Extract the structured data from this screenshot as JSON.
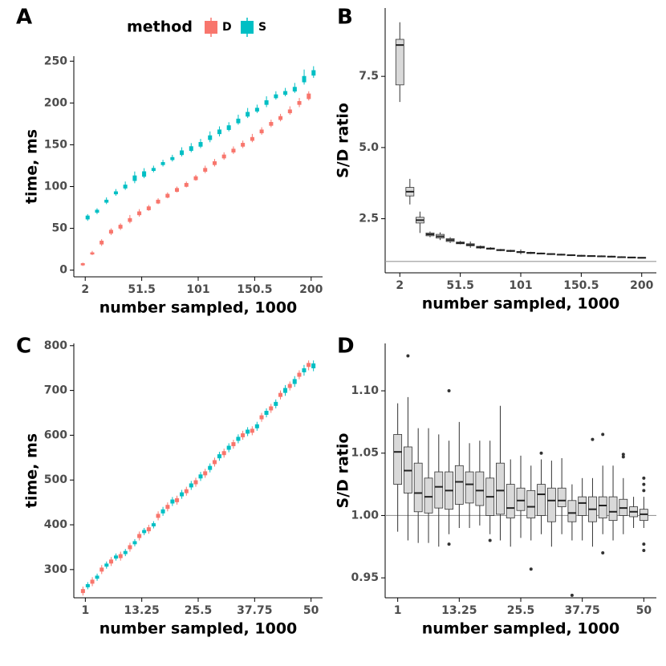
{
  "chart_data": [
    {
      "type": "box",
      "panel_label": "A",
      "xlabel": "number sampled, 1000",
      "ylabel": "time, ms",
      "legend_title": "method",
      "xlim": [
        -8,
        210
      ],
      "ylim": [
        -8,
        256
      ],
      "xticks": [
        2,
        51.5,
        101,
        150.5,
        200
      ],
      "yticks": [
        0,
        50,
        100,
        150,
        200,
        250
      ],
      "x": [
        2,
        10.25,
        18.5,
        26.75,
        35,
        43.25,
        51.5,
        59.75,
        68,
        76.25,
        84.5,
        92.75,
        101,
        109.25,
        117.5,
        125.75,
        134,
        142.25,
        150.5,
        158.75,
        167,
        175.25,
        183.5,
        191.75,
        200
      ],
      "series": [
        {
          "name": "D",
          "color": "#f8766d",
          "low": [
            5,
            18,
            29,
            42,
            48,
            56,
            64,
            71,
            79,
            86,
            93,
            99,
            107,
            116,
            124,
            132,
            139,
            146,
            153,
            162,
            171,
            178,
            186,
            195,
            203
          ],
          "q1": [
            6,
            19,
            31,
            44,
            50,
            58,
            66,
            72,
            80,
            87,
            94,
            100,
            108,
            118,
            126,
            134,
            141,
            148,
            155,
            164,
            173,
            180,
            188,
            198,
            205
          ],
          "median": [
            7,
            20,
            33,
            46,
            52,
            60,
            68,
            74,
            82,
            89,
            96,
            102,
            110,
            120,
            128,
            136,
            143,
            150,
            157,
            166,
            175,
            182,
            190,
            200,
            208
          ],
          "q3": [
            8,
            21,
            35,
            48,
            54,
            62,
            70,
            76,
            84,
            91,
            98,
            104,
            112,
            122,
            130,
            138,
            145,
            152,
            159,
            168,
            177,
            184,
            192,
            202,
            211
          ],
          "high": [
            9,
            23,
            37,
            50,
            56,
            66,
            73,
            78,
            86,
            93,
            100,
            106,
            114,
            125,
            133,
            141,
            148,
            155,
            163,
            171,
            180,
            187,
            196,
            206,
            214
          ]
        },
        {
          "name": "S",
          "color": "#00bfc4",
          "low": [
            59,
            67,
            79,
            89,
            96,
            104,
            110,
            117,
            124,
            130,
            136,
            141,
            146,
            153,
            160,
            166,
            174,
            182,
            188,
            195,
            204,
            208,
            212,
            222,
            230
          ],
          "q1": [
            61,
            69,
            81,
            91,
            98,
            107,
            112,
            119,
            126,
            132,
            138,
            143,
            148,
            156,
            163,
            168,
            176,
            184,
            190,
            198,
            206,
            210,
            214,
            225,
            233
          ],
          "median": [
            63,
            70,
            82,
            92,
            100,
            110,
            115,
            120,
            127,
            133,
            140,
            145,
            150,
            158,
            165,
            170,
            178,
            186,
            192,
            200,
            208,
            212,
            216,
            228,
            236
          ],
          "q3": [
            65,
            72,
            84,
            94,
            102,
            113,
            118,
            122,
            129,
            135,
            143,
            148,
            153,
            161,
            168,
            173,
            181,
            189,
            194,
            203,
            210,
            214,
            219,
            232,
            239
          ],
          "high": [
            67,
            74,
            87,
            97,
            106,
            118,
            122,
            125,
            132,
            138,
            147,
            152,
            157,
            166,
            172,
            177,
            186,
            194,
            198,
            208,
            214,
            218,
            224,
            240,
            244
          ]
        }
      ]
    },
    {
      "type": "box",
      "panel_label": "B",
      "xlabel": "number sampled, 1000",
      "ylabel": "S/D ratio",
      "xlim": [
        -10,
        212
      ],
      "ylim": [
        0.6,
        9.9
      ],
      "hline": 1,
      "xticks": [
        2,
        51.5,
        101,
        150.5,
        200
      ],
      "yticks": [
        2.5,
        {
          "value": 5,
          "label": "5.0"
        },
        7.5
      ],
      "x": [
        2,
        10.25,
        18.5,
        26.75,
        35,
        43.25,
        51.5,
        59.75,
        68,
        76.25,
        84.5,
        92.75,
        101,
        109.25,
        117.5,
        125.75,
        134,
        142.25,
        150.5,
        158.75,
        167,
        175.25,
        183.5,
        191.75,
        200
      ],
      "series": [
        {
          "color": "#d9d9d9",
          "low": [
            6.6,
            3.0,
            2.0,
            1.85,
            1.75,
            1.65,
            1.6,
            1.48,
            1.44,
            1.41,
            1.36,
            1.33,
            1.25,
            1.26,
            1.25,
            1.23,
            1.21,
            1.19,
            1.17,
            1.17,
            1.16,
            1.15,
            1.13,
            1.12,
            1.11
          ],
          "q1": [
            7.2,
            3.3,
            2.35,
            1.9,
            1.82,
            1.7,
            1.62,
            1.55,
            1.47,
            1.43,
            1.38,
            1.35,
            1.31,
            1.28,
            1.27,
            1.25,
            1.23,
            1.21,
            1.19,
            1.18,
            1.17,
            1.16,
            1.14,
            1.13,
            1.12
          ],
          "median": [
            8.6,
            3.45,
            2.45,
            1.95,
            1.88,
            1.75,
            1.65,
            1.58,
            1.5,
            1.45,
            1.4,
            1.37,
            1.33,
            1.3,
            1.28,
            1.26,
            1.24,
            1.22,
            1.2,
            1.19,
            1.18,
            1.17,
            1.15,
            1.14,
            1.13
          ],
          "q3": [
            8.8,
            3.6,
            2.55,
            2.0,
            1.95,
            1.8,
            1.68,
            1.62,
            1.53,
            1.47,
            1.42,
            1.39,
            1.35,
            1.32,
            1.29,
            1.27,
            1.25,
            1.23,
            1.21,
            1.2,
            1.19,
            1.18,
            1.16,
            1.15,
            1.14
          ],
          "high": [
            9.4,
            3.9,
            2.75,
            2.05,
            2.02,
            1.85,
            1.72,
            1.7,
            1.56,
            1.5,
            1.44,
            1.41,
            1.42,
            1.34,
            1.31,
            1.29,
            1.27,
            1.25,
            1.23,
            1.22,
            1.21,
            1.2,
            1.18,
            1.16,
            1.15
          ]
        }
      ]
    },
    {
      "type": "box",
      "panel_label": "C",
      "xlabel": "number sampled, 1000",
      "ylabel": "time, ms",
      "xlim": [
        -1.5,
        52.5
      ],
      "ylim": [
        237,
        805
      ],
      "xticks": [
        1,
        13.25,
        25.5,
        37.75,
        50
      ],
      "yticks": [
        300,
        400,
        500,
        600,
        700,
        800
      ],
      "x": [
        1,
        3.04,
        5.08,
        7.13,
        9.17,
        11.21,
        13.25,
        15.29,
        17.33,
        19.38,
        21.42,
        23.46,
        25.5,
        27.54,
        29.58,
        31.63,
        33.67,
        35.71,
        37.75,
        39.79,
        41.83,
        43.88,
        45.92,
        47.96,
        50
      ],
      "series": [
        {
          "name": "D",
          "color": "#f8766d",
          "low": [
            242,
            263,
            290,
            308,
            320,
            340,
            365,
            380,
            410,
            430,
            445,
            465,
            485,
            505,
            530,
            550,
            570,
            590,
            600,
            630,
            650,
            680,
            700,
            725,
            745
          ],
          "q1": [
            248,
            269,
            296,
            314,
            326,
            346,
            371,
            386,
            416,
            436,
            451,
            471,
            491,
            511,
            536,
            556,
            576,
            596,
            606,
            636,
            656,
            686,
            706,
            731,
            753
          ],
          "median": [
            252,
            273,
            300,
            318,
            330,
            350,
            375,
            390,
            420,
            440,
            455,
            475,
            495,
            515,
            540,
            560,
            580,
            600,
            610,
            640,
            660,
            690,
            710,
            735,
            757
          ],
          "q3": [
            256,
            277,
            304,
            322,
            334,
            354,
            379,
            394,
            424,
            444,
            459,
            479,
            499,
            519,
            544,
            564,
            584,
            604,
            614,
            644,
            664,
            694,
            714,
            739,
            761
          ],
          "high": [
            262,
            283,
            310,
            328,
            340,
            360,
            385,
            400,
            430,
            450,
            465,
            485,
            505,
            525,
            550,
            570,
            590,
            610,
            620,
            650,
            670,
            700,
            720,
            745,
            767
          ]
        },
        {
          "name": "S",
          "color": "#00bfc4",
          "low": [
            256,
            275,
            302,
            320,
            330,
            352,
            377,
            392,
            420,
            442,
            458,
            478,
            498,
            517,
            543,
            562,
            582,
            598,
            610,
            640,
            660,
            688,
            708,
            733,
            743
          ],
          "q1": [
            261,
            280,
            307,
            325,
            335,
            357,
            382,
            397,
            426,
            448,
            464,
            484,
            504,
            523,
            549,
            568,
            588,
            604,
            616,
            646,
            666,
            695,
            715,
            741,
            750
          ],
          "median": [
            264,
            283,
            310,
            328,
            338,
            360,
            385,
            400,
            430,
            452,
            468,
            488,
            508,
            527,
            553,
            572,
            592,
            608,
            620,
            650,
            670,
            700,
            720,
            745,
            755
          ],
          "q3": [
            267,
            286,
            313,
            331,
            341,
            363,
            388,
            403,
            434,
            456,
            472,
            492,
            512,
            531,
            557,
            576,
            596,
            612,
            624,
            654,
            674,
            705,
            725,
            749,
            760
          ],
          "high": [
            272,
            291,
            318,
            336,
            346,
            368,
            393,
            408,
            440,
            462,
            478,
            498,
            518,
            537,
            563,
            582,
            602,
            618,
            630,
            660,
            680,
            712,
            732,
            757,
            767
          ]
        }
      ]
    },
    {
      "type": "box",
      "panel_label": "D",
      "xlabel": "number sampled, 1000",
      "ylabel": "S/D ratio",
      "xlim": [
        -1.5,
        52.5
      ],
      "ylim": [
        0.934,
        1.138
      ],
      "hline": 1,
      "xticks": [
        1,
        13.25,
        25.5,
        37.75,
        50
      ],
      "yticks": [
        0.95,
        {
          "value": 1,
          "label": "1.00"
        },
        1.05,
        {
          "value": 1.1,
          "label": "1.10"
        }
      ],
      "x": [
        1,
        3.04,
        5.08,
        7.13,
        9.17,
        11.21,
        13.25,
        15.29,
        17.33,
        19.38,
        21.42,
        23.46,
        25.5,
        27.54,
        29.58,
        31.63,
        33.67,
        35.71,
        37.75,
        39.79,
        41.83,
        43.88,
        45.92,
        47.96,
        50
      ],
      "series": [
        {
          "color": "#d9d9d9",
          "low": [
            0.987,
            0.98,
            0.978,
            0.978,
            0.975,
            0.985,
            0.99,
            0.99,
            0.992,
            0.985,
            0.98,
            0.975,
            0.982,
            0.98,
            0.985,
            0.975,
            0.985,
            0.98,
            0.98,
            0.975,
            0.985,
            0.98,
            0.985,
            0.99,
            0.99
          ],
          "q1": [
            1.025,
            1.018,
            1.003,
            1.002,
            1.006,
            1.005,
            1.009,
            1.01,
            1.008,
            1.0,
            1.001,
            0.998,
            1.004,
            0.998,
            1.0,
            0.995,
            1.007,
            0.995,
            1.0,
            0.995,
            0.998,
            0.996,
            1.0,
            0.999,
            0.996
          ],
          "median": [
            1.051,
            1.036,
            1.018,
            1.015,
            1.023,
            1.02,
            1.027,
            1.025,
            1.02,
            1.015,
            1.02,
            1.006,
            1.012,
            1.007,
            1.017,
            1.012,
            1.012,
            1.002,
            1.01,
            1.005,
            1.008,
            1.003,
            1.006,
            1.003,
            1.001
          ],
          "q3": [
            1.065,
            1.055,
            1.042,
            1.03,
            1.035,
            1.035,
            1.04,
            1.035,
            1.035,
            1.03,
            1.042,
            1.025,
            1.022,
            1.02,
            1.025,
            1.022,
            1.022,
            1.012,
            1.015,
            1.015,
            1.015,
            1.015,
            1.013,
            1.007,
            1.005
          ],
          "high": [
            1.09,
            1.095,
            1.07,
            1.07,
            1.065,
            1.06,
            1.075,
            1.058,
            1.06,
            1.06,
            1.088,
            1.045,
            1.048,
            1.04,
            1.045,
            1.044,
            1.046,
            1.025,
            1.03,
            1.03,
            1.04,
            1.04,
            1.03,
            1.015,
            1.015
          ]
        }
      ],
      "outliers_x": [
        3.04,
        11.21,
        11.21,
        19.38,
        27.54,
        29.58,
        35.71,
        39.79,
        41.83,
        41.83,
        45.92,
        45.92,
        50,
        50,
        50,
        50,
        50
      ],
      "outliers_y": [
        1.128,
        1.1,
        0.977,
        0.98,
        0.957,
        1.05,
        0.936,
        1.061,
        1.065,
        0.97,
        1.049,
        1.047,
        1.03,
        1.025,
        1.02,
        0.977,
        0.972
      ]
    }
  ]
}
